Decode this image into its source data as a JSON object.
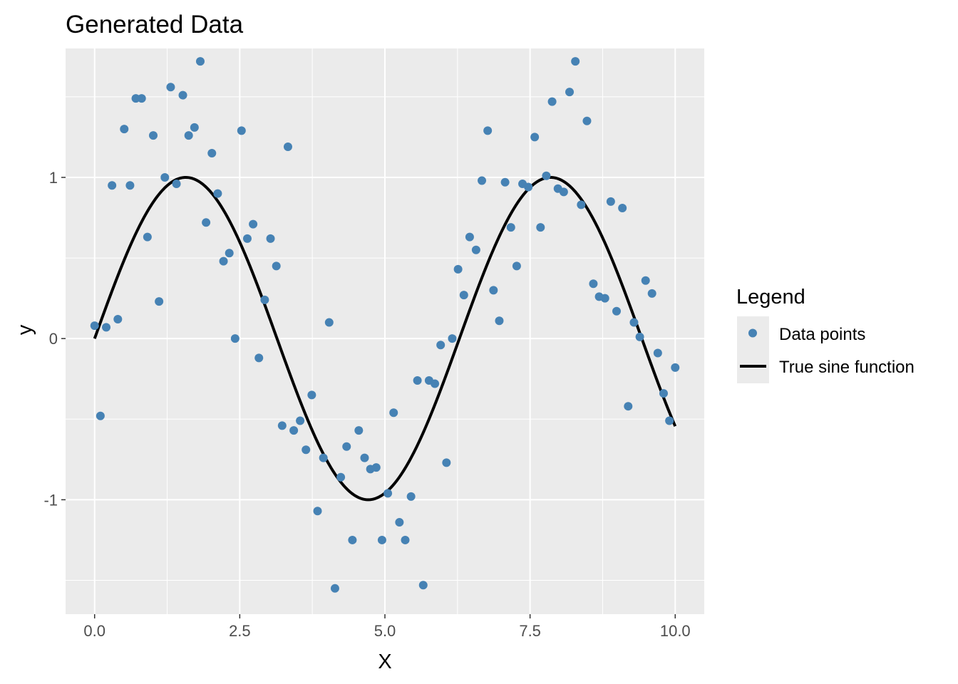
{
  "chart_data": {
    "type": "scatter",
    "title": "Generated Data",
    "xlabel": "X",
    "ylabel": "y",
    "xlim": [
      -0.5,
      10.5
    ],
    "ylim": [
      -1.71,
      1.8
    ],
    "xticks": [
      0,
      2.5,
      5,
      7.5,
      10
    ],
    "xtick_labels": [
      "0.0",
      "2.5",
      "5.0",
      "7.5",
      "10.0"
    ],
    "yticks": [
      -1,
      0,
      1
    ],
    "ytick_labels": [
      "-1",
      "0",
      "1"
    ],
    "grid": true,
    "legend_position": "right",
    "legend": {
      "title": "Legend",
      "points_label": "Data points",
      "line_label": "True sine function"
    },
    "colors": {
      "points": "#4682b4",
      "line": "#000000",
      "panel": "#ebebeb",
      "grid": "#ffffff"
    },
    "series": [
      {
        "name": "Data points",
        "kind": "scatter",
        "x": [
          0.0,
          0.1,
          0.2,
          0.3,
          0.4,
          0.51,
          0.61,
          0.71,
          0.81,
          0.91,
          1.01,
          1.11,
          1.21,
          1.31,
          1.41,
          1.52,
          1.62,
          1.72,
          1.82,
          1.92,
          2.02,
          2.12,
          2.22,
          2.32,
          2.42,
          2.53,
          2.63,
          2.73,
          2.83,
          2.93,
          3.03,
          3.13,
          3.23,
          3.33,
          3.43,
          3.54,
          3.64,
          3.74,
          3.84,
          3.94,
          4.04,
          4.14,
          4.24,
          4.34,
          4.44,
          4.55,
          4.65,
          4.75,
          4.85,
          4.95,
          5.05,
          5.15,
          5.25,
          5.35,
          5.45,
          5.56,
          5.66,
          5.76,
          5.86,
          5.96,
          6.06,
          6.16,
          6.26,
          6.36,
          6.46,
          6.57,
          6.67,
          6.77,
          6.87,
          6.97,
          7.07,
          7.17,
          7.27,
          7.37,
          7.47,
          7.58,
          7.68,
          7.78,
          7.88,
          7.98,
          8.08,
          8.18,
          8.28,
          8.38,
          8.48,
          8.59,
          8.69,
          8.79,
          8.89,
          8.99,
          9.09,
          9.19,
          9.29,
          9.39,
          9.49,
          9.6,
          9.7,
          9.8,
          9.9,
          10.0
        ],
        "y": [
          0.08,
          -0.48,
          0.07,
          0.95,
          0.12,
          1.3,
          0.95,
          1.49,
          1.49,
          0.63,
          1.26,
          0.23,
          1.0,
          1.56,
          0.96,
          1.51,
          1.26,
          1.31,
          1.72,
          0.72,
          1.15,
          0.9,
          0.48,
          0.53,
          0.0,
          1.29,
          0.62,
          0.71,
          -0.12,
          0.24,
          0.62,
          0.45,
          -0.54,
          1.19,
          -0.57,
          -0.51,
          -0.69,
          -0.35,
          -1.07,
          -0.74,
          0.1,
          -1.55,
          -0.86,
          -0.67,
          -1.25,
          -0.57,
          -0.74,
          -0.81,
          -0.8,
          -1.25,
          -0.96,
          -0.46,
          -1.14,
          -1.25,
          -0.98,
          -0.26,
          -1.53,
          -0.26,
          -0.28,
          -0.04,
          -0.77,
          0.0,
          0.43,
          0.27,
          0.63,
          0.55,
          0.98,
          1.29,
          0.3,
          0.11,
          0.97,
          0.69,
          0.45,
          0.96,
          0.94,
          1.25,
          0.69,
          1.01,
          1.47,
          0.93,
          0.91,
          1.53,
          1.72,
          0.83,
          1.35,
          0.34,
          0.26,
          0.25,
          0.85,
          0.17,
          0.81,
          -0.42,
          0.1,
          0.01,
          0.36,
          0.28,
          -0.09,
          -0.34,
          -0.51,
          -0.18
        ]
      },
      {
        "name": "True sine function",
        "kind": "line",
        "function": "sin(x)",
        "x_range": [
          0,
          10
        ]
      }
    ]
  }
}
